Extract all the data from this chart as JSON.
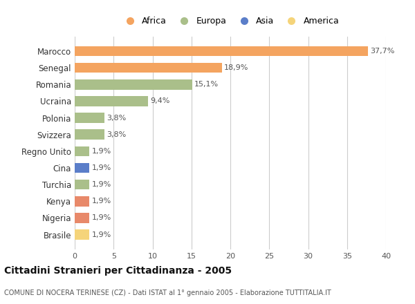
{
  "countries": [
    "Marocco",
    "Senegal",
    "Romania",
    "Ucraina",
    "Polonia",
    "Svizzera",
    "Regno Unito",
    "Cina",
    "Turchia",
    "Kenya",
    "Nigeria",
    "Brasile"
  ],
  "values": [
    37.7,
    18.9,
    15.1,
    9.4,
    3.8,
    3.8,
    1.9,
    1.9,
    1.9,
    1.9,
    1.9,
    1.9
  ],
  "labels": [
    "37,7%",
    "18,9%",
    "15,1%",
    "9,4%",
    "3,8%",
    "3,8%",
    "1,9%",
    "1,9%",
    "1,9%",
    "1,9%",
    "1,9%",
    "1,9%"
  ],
  "colors": [
    "#F4A460",
    "#F4A460",
    "#AABF8A",
    "#AABF8A",
    "#AABF8A",
    "#AABF8A",
    "#AABF8A",
    "#5B7EC9",
    "#AABF8A",
    "#E8896A",
    "#E8896A",
    "#F5D47A"
  ],
  "legend_labels": [
    "Africa",
    "Europa",
    "Asia",
    "America"
  ],
  "legend_colors": [
    "#F4A460",
    "#AABF8A",
    "#5B7EC9",
    "#F5D47A"
  ],
  "xlim": [
    0,
    40
  ],
  "xticks": [
    0,
    5,
    10,
    15,
    20,
    25,
    30,
    35,
    40
  ],
  "title": "Cittadini Stranieri per Cittadinanza - 2005",
  "subtitle": "COMUNE DI NOCERA TERINESE (CZ) - Dati ISTAT al 1° gennaio 2005 - Elaborazione TUTTITALIA.IT",
  "bg_color": "#FFFFFF",
  "grid_color": "#CCCCCC",
  "bar_height": 0.6
}
